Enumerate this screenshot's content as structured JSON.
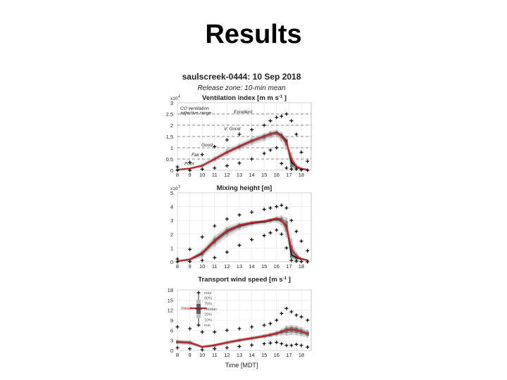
{
  "slide": {
    "title": "Results"
  },
  "figure": {
    "title": "saulscreek-0444: 10 Sep 2018",
    "subtitle": "Release zone: 10-min mean",
    "xlabel": "Time [MDT]"
  },
  "chart_data": [
    {
      "type": "line",
      "title": "Ventilation index [m m s",
      "title_sup": "-1",
      "title_end": "]",
      "multiplier": "x10",
      "multiplier_exp": "4",
      "x": [
        8,
        9,
        10,
        11,
        12,
        13,
        14,
        15,
        15.5,
        16,
        16.4,
        16.8,
        17.2,
        17.6,
        18,
        18.5
      ],
      "xticks": [
        "8",
        "9",
        "10",
        "11",
        "12",
        "13",
        "14",
        "15",
        "16",
        "17",
        "18"
      ],
      "ylim": [
        0,
        3
      ],
      "yticks": [
        "0",
        "0.5",
        "1",
        "1.5",
        "2",
        "2.5",
        "3"
      ],
      "grid": true,
      "threshold_lines": [
        0.5,
        1,
        1.5,
        2,
        2.5
      ],
      "annotations": [
        "CO ventilation",
        "adjective range",
        "Excellent",
        "V. Good",
        "Good",
        "Fair",
        "Poor"
      ],
      "series": [
        {
          "stat": "max",
          "values": [
            0.15,
            0.35,
            0.7,
            1.05,
            1.35,
            1.6,
            1.8,
            2.0,
            2.2,
            2.35,
            2.4,
            2.5,
            2.2,
            1.6,
            0.8,
            0.4
          ]
        },
        {
          "stat": "p90",
          "values": [
            0.05,
            0.12,
            0.3,
            0.62,
            0.95,
            1.2,
            1.45,
            1.65,
            1.75,
            1.8,
            1.7,
            1.5,
            0.8,
            0.3,
            0.12,
            0.05
          ]
        },
        {
          "stat": "p75",
          "values": [
            0.04,
            0.09,
            0.24,
            0.55,
            0.86,
            1.12,
            1.38,
            1.58,
            1.68,
            1.74,
            1.62,
            1.38,
            0.55,
            0.2,
            0.08,
            0.04
          ]
        },
        {
          "stat": "median",
          "values": [
            0.03,
            0.07,
            0.2,
            0.5,
            0.8,
            1.05,
            1.3,
            1.5,
            1.62,
            1.68,
            1.55,
            1.3,
            0.35,
            0.15,
            0.06,
            0.03
          ]
        },
        {
          "stat": "mean",
          "values": [
            0.03,
            0.08,
            0.21,
            0.51,
            0.81,
            1.07,
            1.31,
            1.51,
            1.62,
            1.66,
            1.52,
            1.22,
            0.5,
            0.17,
            0.07,
            0.03
          ]
        },
        {
          "stat": "p25",
          "values": [
            0.02,
            0.05,
            0.16,
            0.44,
            0.73,
            0.98,
            1.22,
            1.4,
            1.52,
            1.58,
            1.42,
            1.1,
            0.15,
            0.08,
            0.04,
            0.02
          ]
        },
        {
          "stat": "p10",
          "values": [
            0.01,
            0.03,
            0.12,
            0.38,
            0.65,
            0.9,
            1.12,
            1.3,
            1.42,
            1.48,
            1.28,
            0.9,
            0.08,
            0.05,
            0.03,
            0.01
          ]
        },
        {
          "stat": "min",
          "values": [
            0.0,
            0.0,
            0.05,
            0.1,
            0.2,
            0.32,
            0.5,
            0.75,
            0.9,
            1.0,
            0.3,
            0.1,
            0.05,
            0.05,
            0.02,
            0.0
          ]
        }
      ]
    },
    {
      "type": "line",
      "title": "Mixing height [m]",
      "multiplier": "x10",
      "multiplier_exp": "3",
      "x": [
        8,
        9,
        10,
        11,
        12,
        13,
        14,
        15,
        15.5,
        16,
        16.4,
        16.8,
        17.2,
        17.6,
        18,
        18.5
      ],
      "xticks": [
        "8",
        "9",
        "10",
        "11",
        "12",
        "13",
        "14",
        "15",
        "16",
        "17",
        "18"
      ],
      "ylim": [
        0,
        5
      ],
      "yticks": [
        "0",
        "1",
        "2",
        "3",
        "4",
        "5"
      ],
      "grid": true,
      "series": [
        {
          "stat": "max",
          "values": [
            0.2,
            0.9,
            1.8,
            2.6,
            3.1,
            3.4,
            3.6,
            3.8,
            3.9,
            4.0,
            4.1,
            3.9,
            3.0,
            2.2,
            1.5,
            0.8
          ]
        },
        {
          "stat": "p90",
          "values": [
            0.06,
            0.25,
            0.9,
            1.9,
            2.55,
            2.85,
            2.95,
            3.05,
            3.15,
            3.3,
            3.35,
            3.2,
            1.7,
            0.7,
            0.3,
            0.15
          ]
        },
        {
          "stat": "p75",
          "values": [
            0.05,
            0.2,
            0.75,
            1.7,
            2.4,
            2.75,
            2.9,
            3.0,
            3.08,
            3.2,
            3.2,
            2.95,
            1.2,
            0.55,
            0.25,
            0.12
          ]
        },
        {
          "stat": "median",
          "values": [
            0.04,
            0.15,
            0.6,
            1.5,
            2.2,
            2.6,
            2.8,
            2.9,
            3.0,
            3.1,
            3.0,
            2.6,
            0.5,
            0.3,
            0.2,
            0.1
          ]
        },
        {
          "stat": "mean",
          "values": [
            0.05,
            0.18,
            0.65,
            1.55,
            2.25,
            2.65,
            2.85,
            2.95,
            3.05,
            3.15,
            3.05,
            2.5,
            0.9,
            0.4,
            0.22,
            0.12
          ]
        },
        {
          "stat": "p25",
          "values": [
            0.03,
            0.1,
            0.45,
            1.3,
            2.0,
            2.45,
            2.7,
            2.82,
            2.9,
            2.98,
            2.85,
            2.2,
            0.3,
            0.18,
            0.14,
            0.08
          ]
        },
        {
          "stat": "p10",
          "values": [
            0.02,
            0.06,
            0.3,
            1.1,
            1.8,
            2.3,
            2.6,
            2.72,
            2.8,
            2.85,
            2.65,
            1.8,
            0.15,
            0.1,
            0.08,
            0.05
          ]
        },
        {
          "stat": "min",
          "values": [
            0.0,
            0.02,
            0.1,
            0.3,
            0.7,
            1.2,
            1.6,
            1.9,
            2.1,
            2.3,
            2.0,
            1.0,
            0.1,
            0.05,
            0.02,
            0.0
          ]
        }
      ]
    },
    {
      "type": "line",
      "title": "Transport wind speed [m s",
      "title_sup": "-1",
      "title_end": "]",
      "x": [
        8,
        9,
        10,
        11,
        12,
        13,
        14,
        15,
        15.5,
        16,
        16.4,
        16.8,
        17.2,
        17.6,
        18,
        18.5
      ],
      "xticks": [
        "8",
        "9",
        "10",
        "11",
        "12",
        "13",
        "14",
        "15",
        "16",
        "17",
        "18"
      ],
      "ylim": [
        0,
        18
      ],
      "yticks": [
        "0",
        "3",
        "6",
        "9",
        "12",
        "15",
        "18"
      ],
      "grid": true,
      "legend": {
        "placement": "top-center",
        "entries": [
          "max",
          "90%",
          "75%",
          "median",
          "25%",
          "10%",
          "min"
        ],
        "mean_label": "mean"
      },
      "series": [
        {
          "stat": "max",
          "values": [
            7.0,
            6.5,
            5.5,
            5.5,
            6.0,
            6.5,
            7.0,
            7.5,
            8.0,
            9.0,
            11.0,
            12.5,
            11.5,
            10.5,
            10.0,
            9.0
          ]
        },
        {
          "stat": "p90",
          "values": [
            3.2,
            3.0,
            1.4,
            2.0,
            2.9,
            3.6,
            4.2,
            4.9,
            5.3,
            5.8,
            6.4,
            7.4,
            7.6,
            7.4,
            6.9,
            6.2
          ]
        },
        {
          "stat": "p75",
          "values": [
            2.9,
            2.7,
            1.2,
            1.8,
            2.6,
            3.3,
            3.9,
            4.6,
            5.0,
            5.5,
            6.0,
            6.8,
            7.0,
            6.8,
            6.3,
            5.6
          ]
        },
        {
          "stat": "median",
          "values": [
            2.5,
            2.3,
            1.0,
            1.5,
            2.3,
            3.0,
            3.6,
            4.2,
            4.6,
            5.0,
            5.5,
            6.0,
            6.2,
            6.0,
            5.6,
            5.0
          ]
        },
        {
          "stat": "mean",
          "values": [
            2.6,
            2.4,
            1.1,
            1.6,
            2.4,
            3.1,
            3.7,
            4.3,
            4.7,
            5.1,
            5.6,
            6.1,
            6.3,
            6.1,
            5.6,
            5.0
          ]
        },
        {
          "stat": "p25",
          "values": [
            2.1,
            1.9,
            0.8,
            1.2,
            2.0,
            2.7,
            3.3,
            3.9,
            4.2,
            4.6,
            5.0,
            5.2,
            5.4,
            5.2,
            4.9,
            4.4
          ]
        },
        {
          "stat": "p10",
          "values": [
            1.8,
            1.6,
            0.6,
            1.0,
            1.7,
            2.4,
            3.0,
            3.6,
            3.9,
            4.2,
            4.5,
            4.4,
            4.6,
            4.5,
            4.2,
            3.8
          ]
        },
        {
          "stat": "min",
          "values": [
            0.8,
            0.5,
            0.2,
            0.5,
            0.8,
            1.2,
            1.6,
            2.0,
            2.2,
            2.4,
            2.0,
            1.5,
            1.5,
            1.8,
            1.5,
            1.0
          ]
        }
      ]
    }
  ],
  "colors": {
    "mean": "#c0282b",
    "median": "#111111",
    "band_outer": "#bdbdbd",
    "band_inner": "#5e5e5e",
    "markers": "#000000",
    "grid": "#e3e3e3",
    "dashed": "#666666",
    "text": "#222222"
  }
}
